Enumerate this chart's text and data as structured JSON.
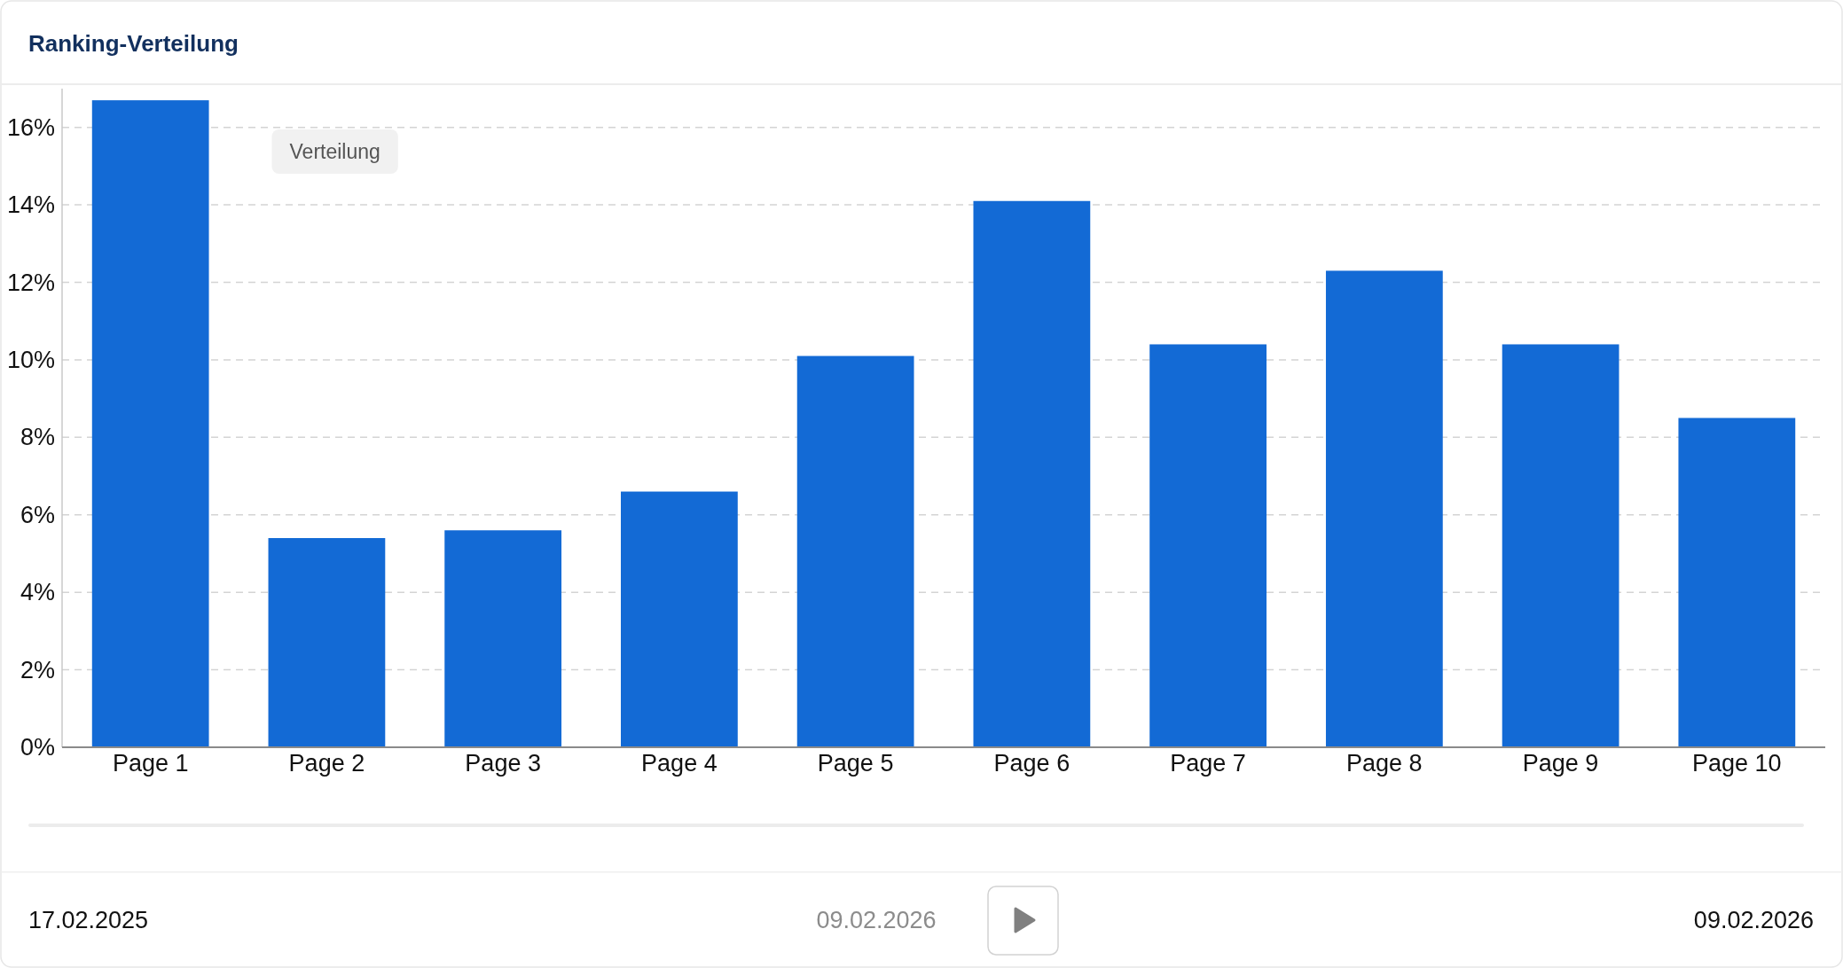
{
  "chart_data": {
    "type": "bar",
    "title": "Ranking-Verteilung",
    "categories": [
      "Page 1",
      "Page 2",
      "Page 3",
      "Page 4",
      "Page 5",
      "Page 6",
      "Page 7",
      "Page 8",
      "Page 9",
      "Page 10"
    ],
    "values": [
      16.7,
      5.4,
      5.6,
      6.6,
      10.1,
      14.1,
      10.4,
      12.3,
      10.4,
      8.5
    ],
    "color": "#136ad5",
    "ylim": [
      0,
      17
    ],
    "yticks": [
      {
        "value": 0,
        "label": "0%"
      },
      {
        "value": 2,
        "label": "2%"
      },
      {
        "value": 4,
        "label": "4%"
      },
      {
        "value": 6,
        "label": "6%"
      },
      {
        "value": 8,
        "label": "8%"
      },
      {
        "value": 10,
        "label": "10%"
      },
      {
        "value": 12,
        "label": "12%"
      },
      {
        "value": 14,
        "label": "14%"
      },
      {
        "value": 16,
        "label": "16%"
      }
    ],
    "grid": "y",
    "legend_title": "Verteilung",
    "annotations": [
      "17.02.2025",
      "09.02.2026",
      "09.02.2026"
    ]
  }
}
